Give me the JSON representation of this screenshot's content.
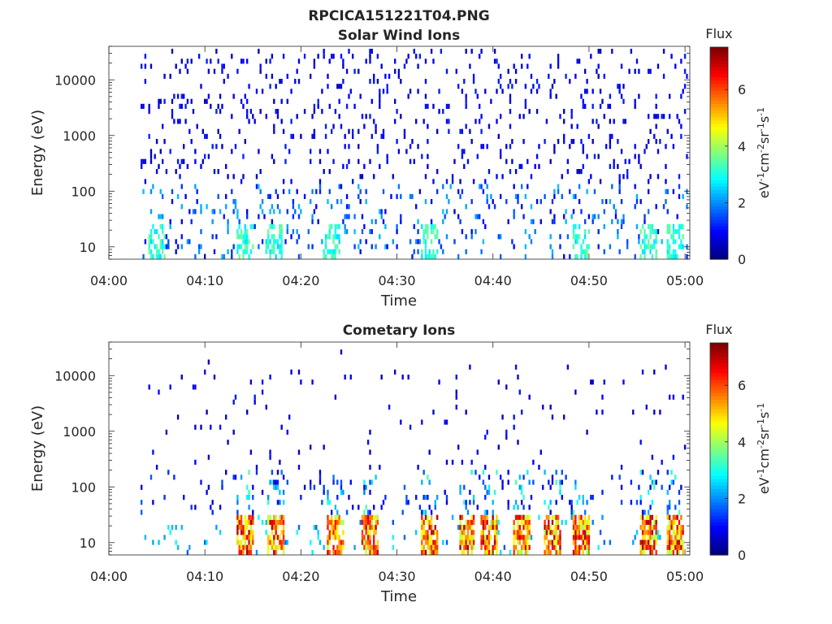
{
  "figure": {
    "title_line1": "RPCICA151221T04.PNG"
  },
  "colormap": "jet",
  "chart_data": [
    {
      "type": "heatmap",
      "title": "Solar Wind Ions",
      "xlabel": "Time",
      "ylabel": "Energy (eV)",
      "x_tick_labels": [
        "04:00",
        "04:10",
        "04:20",
        "04:30",
        "04:40",
        "04:50",
        "05:00"
      ],
      "x_range_minutes": [
        0,
        60.5
      ],
      "y_scale": "log",
      "y_range": [
        6,
        40000
      ],
      "y_tick_labels": [
        "10",
        "100",
        "1000",
        "10000"
      ],
      "y_tick_values": [
        10,
        100,
        1000,
        10000
      ],
      "colorbar": {
        "label_title": "Flux",
        "unit_label": "eV⁻¹cm⁻²sr⁻¹s⁻¹",
        "range": [
          0,
          7.5
        ],
        "tick_labels": [
          "0",
          "2",
          "4",
          "6"
        ],
        "tick_values": [
          0,
          2,
          4,
          6
        ]
      },
      "data_start_minute": 3.3,
      "data_end_minute": 60.3,
      "intensity_profile": "scattered low flux (blue) across 10–30000 eV; green/cyan bursts near 10–20 eV at ~4:05, 4:14, 4:17, 4:23, 4:33, 4:49, 4:56, 4:59"
    },
    {
      "type": "heatmap",
      "title": "Cometary Ions",
      "xlabel": "Time",
      "ylabel": "Energy (eV)",
      "x_tick_labels": [
        "04:00",
        "04:10",
        "04:20",
        "04:30",
        "04:40",
        "04:50",
        "05:00"
      ],
      "x_range_minutes": [
        0,
        60.5
      ],
      "y_scale": "log",
      "y_range": [
        6,
        40000
      ],
      "y_tick_labels": [
        "10",
        "100",
        "1000",
        "10000"
      ],
      "y_tick_values": [
        10,
        100,
        1000,
        10000
      ],
      "colorbar": {
        "label_title": "Flux",
        "unit_label": "eV⁻¹cm⁻²sr⁻¹s⁻¹",
        "range": [
          0,
          7.5
        ],
        "tick_labels": [
          "0",
          "2",
          "4",
          "6"
        ],
        "tick_values": [
          0,
          2,
          4,
          6
        ]
      },
      "data_start_minute": 3.3,
      "data_end_minute": 60.3,
      "intensity_profile": "high flux (yellow-red, up to ~7) bursts at 6–30 eV near ~4:14, 4:17, 4:23, 4:27, 4:33, 4:37, 4:39, 4:43, 4:46, 4:49, 4:56, 4:59; scattered blue points above 100 eV"
    }
  ]
}
